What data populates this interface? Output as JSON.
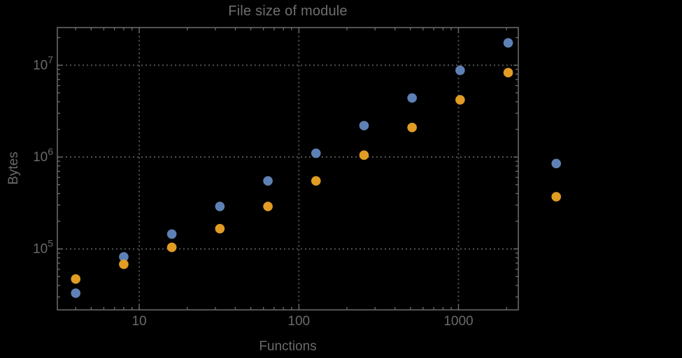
{
  "colors": {
    "background": "#000000",
    "frame": "#6e6e6e",
    "grid": "#5c5c5c",
    "text": "#6a6a6a",
    "series_blue": "#5e81b5",
    "series_orange": "#e19c24"
  },
  "chart_data": {
    "type": "scatter",
    "title": "File size of module",
    "xlabel": "Functions",
    "ylabel": "Bytes",
    "x_scale": "log",
    "y_scale": "log",
    "xlim": [
      3.07,
      2370
    ],
    "ylim": [
      21700,
      25700000
    ],
    "grid": "dotted lines at decade ticks, frame with inward log minor ticks on all four edges",
    "legend": "none",
    "x": [
      4,
      8,
      16,
      32,
      64,
      128,
      256,
      512,
      1024,
      2048,
      4096
    ],
    "series": [
      {
        "name": "blue",
        "color": "#5e81b5",
        "values": [
          33000,
          82000,
          145000,
          290000,
          550000,
          1100000,
          2200000,
          4400000,
          8800000,
          17500000,
          850000
        ]
      },
      {
        "name": "orange",
        "color": "#e19c24",
        "values": [
          47000,
          68000,
          104000,
          166000,
          290000,
          550000,
          1050000,
          2100000,
          4200000,
          8300000,
          370000
        ]
      }
    ],
    "note": "points at x=4096 are drawn outside the right edge of the plot frame (unclipped)",
    "x_ticks": [
      {
        "value": 10,
        "label": "10"
      },
      {
        "value": 100,
        "label": "100"
      },
      {
        "value": 1000,
        "label": "1000"
      }
    ],
    "y_ticks": [
      {
        "value": 100000,
        "base": "10",
        "exp": "5"
      },
      {
        "value": 1000000,
        "base": "10",
        "exp": "6"
      },
      {
        "value": 10000000,
        "base": "10",
        "exp": "7"
      }
    ]
  }
}
